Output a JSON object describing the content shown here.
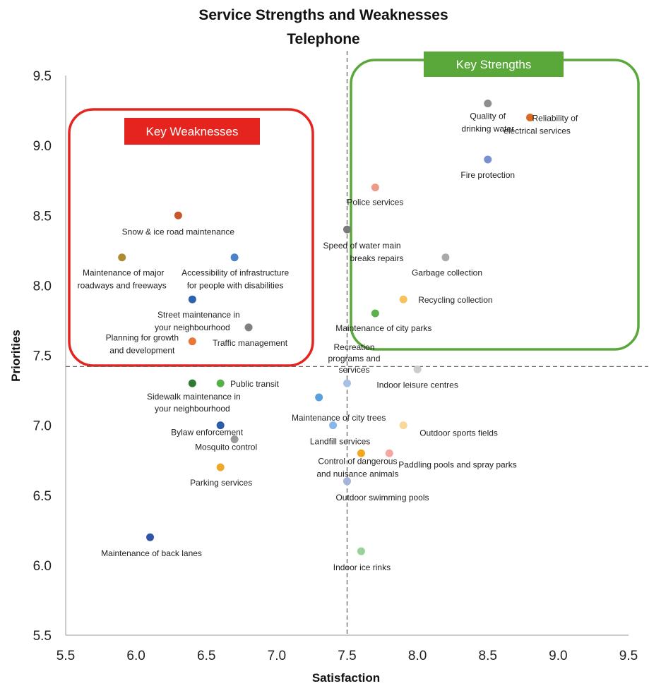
{
  "chart_data": {
    "type": "scatter",
    "title": "Service Strengths and Weaknesses",
    "subtitle": "Telephone",
    "xlabel": "Satisfaction",
    "ylabel": "Priorities",
    "xlim": [
      5.5,
      9.5
    ],
    "ylim": [
      5.5,
      9.5
    ],
    "xticks": [
      "5.5",
      "6.0",
      "6.5",
      "7.0",
      "7.5",
      "8.0",
      "8.5",
      "9.0",
      "9.5"
    ],
    "yticks": [
      "5.5",
      "6.0",
      "6.5",
      "7.0",
      "7.5",
      "8.0",
      "8.5",
      "9.0",
      "9.5"
    ],
    "grid": false,
    "reference_lines": {
      "x": 7.5,
      "y": 7.42
    },
    "regions": [
      {
        "label": "Key Weaknesses",
        "color": "#e52420"
      },
      {
        "label": "Key Strengths",
        "color": "#5aa83a"
      }
    ],
    "points": [
      {
        "label": "Quality of drinking water",
        "x": 8.5,
        "y": 9.3,
        "color": "#8e8e8e"
      },
      {
        "label": "Reliability of electrical services",
        "x": 8.8,
        "y": 9.2,
        "color": "#dd6a22"
      },
      {
        "label": "Fire protection",
        "x": 8.5,
        "y": 8.9,
        "color": "#7792cf"
      },
      {
        "label": "Police services",
        "x": 7.7,
        "y": 8.7,
        "color": "#ee9a88"
      },
      {
        "label": "Speed of water main breaks repairs",
        "x": 7.5,
        "y": 8.4,
        "color": "#7a7a7a"
      },
      {
        "label": "Garbage collection",
        "x": 8.2,
        "y": 8.2,
        "color": "#aaaaaa"
      },
      {
        "label": "Recycling collection",
        "x": 7.9,
        "y": 7.9,
        "color": "#f7c25e"
      },
      {
        "label": "Maintenance of city parks",
        "x": 7.7,
        "y": 7.8,
        "color": "#5bb14a"
      },
      {
        "label": "Snow & ice road maintenance",
        "x": 6.3,
        "y": 8.5,
        "color": "#c9562a"
      },
      {
        "label": "Maintenance of major roadways and freeways",
        "x": 5.9,
        "y": 8.2,
        "color": "#b08a30"
      },
      {
        "label": "Accessibility of infrastructure for people with disabilities",
        "x": 6.7,
        "y": 8.2,
        "color": "#4b82c8"
      },
      {
        "label": "Street maintenance in your neighbourhood",
        "x": 6.4,
        "y": 7.9,
        "color": "#2f62b0"
      },
      {
        "label": "Traffic management",
        "x": 6.8,
        "y": 7.7,
        "color": "#808080"
      },
      {
        "label": "Planning for growth and development",
        "x": 6.4,
        "y": 7.6,
        "color": "#ea7636"
      },
      {
        "label": "Recreation programs and services",
        "x": 7.5,
        "y": 7.3,
        "color": "#a7c1e6"
      },
      {
        "label": "Indoor leisure centres",
        "x": 8.0,
        "y": 7.4,
        "color": "#cccccc"
      },
      {
        "label": "Sidewalk maintenance in your neighbourhood",
        "x": 6.4,
        "y": 7.3,
        "color": "#2f7a32"
      },
      {
        "label": "Public transit",
        "x": 6.6,
        "y": 7.3,
        "color": "#55b04a"
      },
      {
        "label": "Maintenance of city trees",
        "x": 7.3,
        "y": 7.2,
        "color": "#5c9fde"
      },
      {
        "label": "Bylaw enforcement",
        "x": 6.6,
        "y": 7.0,
        "color": "#2a5ca8"
      },
      {
        "label": "Landfill services",
        "x": 7.4,
        "y": 7.0,
        "color": "#8ab7e8"
      },
      {
        "label": "Outdoor sports fields",
        "x": 7.9,
        "y": 7.0,
        "color": "#fad79a"
      },
      {
        "label": "Mosquito control",
        "x": 6.7,
        "y": 6.9,
        "color": "#9a9a9a"
      },
      {
        "label": "Control of dangerous and nuisance animals",
        "x": 7.6,
        "y": 6.8,
        "color": "#f2a71f"
      },
      {
        "label": "Paddling pools and spray parks",
        "x": 7.8,
        "y": 6.8,
        "color": "#f4a8a0"
      },
      {
        "label": "Parking services",
        "x": 6.6,
        "y": 6.7,
        "color": "#f0a82a"
      },
      {
        "label": "Outdoor swimming pools",
        "x": 7.5,
        "y": 6.6,
        "color": "#a4b4dc"
      },
      {
        "label": "Maintenance of back lanes",
        "x": 6.1,
        "y": 6.2,
        "color": "#2f56a6"
      },
      {
        "label": "Indoor ice rinks",
        "x": 7.6,
        "y": 6.1,
        "color": "#9ad09a"
      }
    ]
  }
}
